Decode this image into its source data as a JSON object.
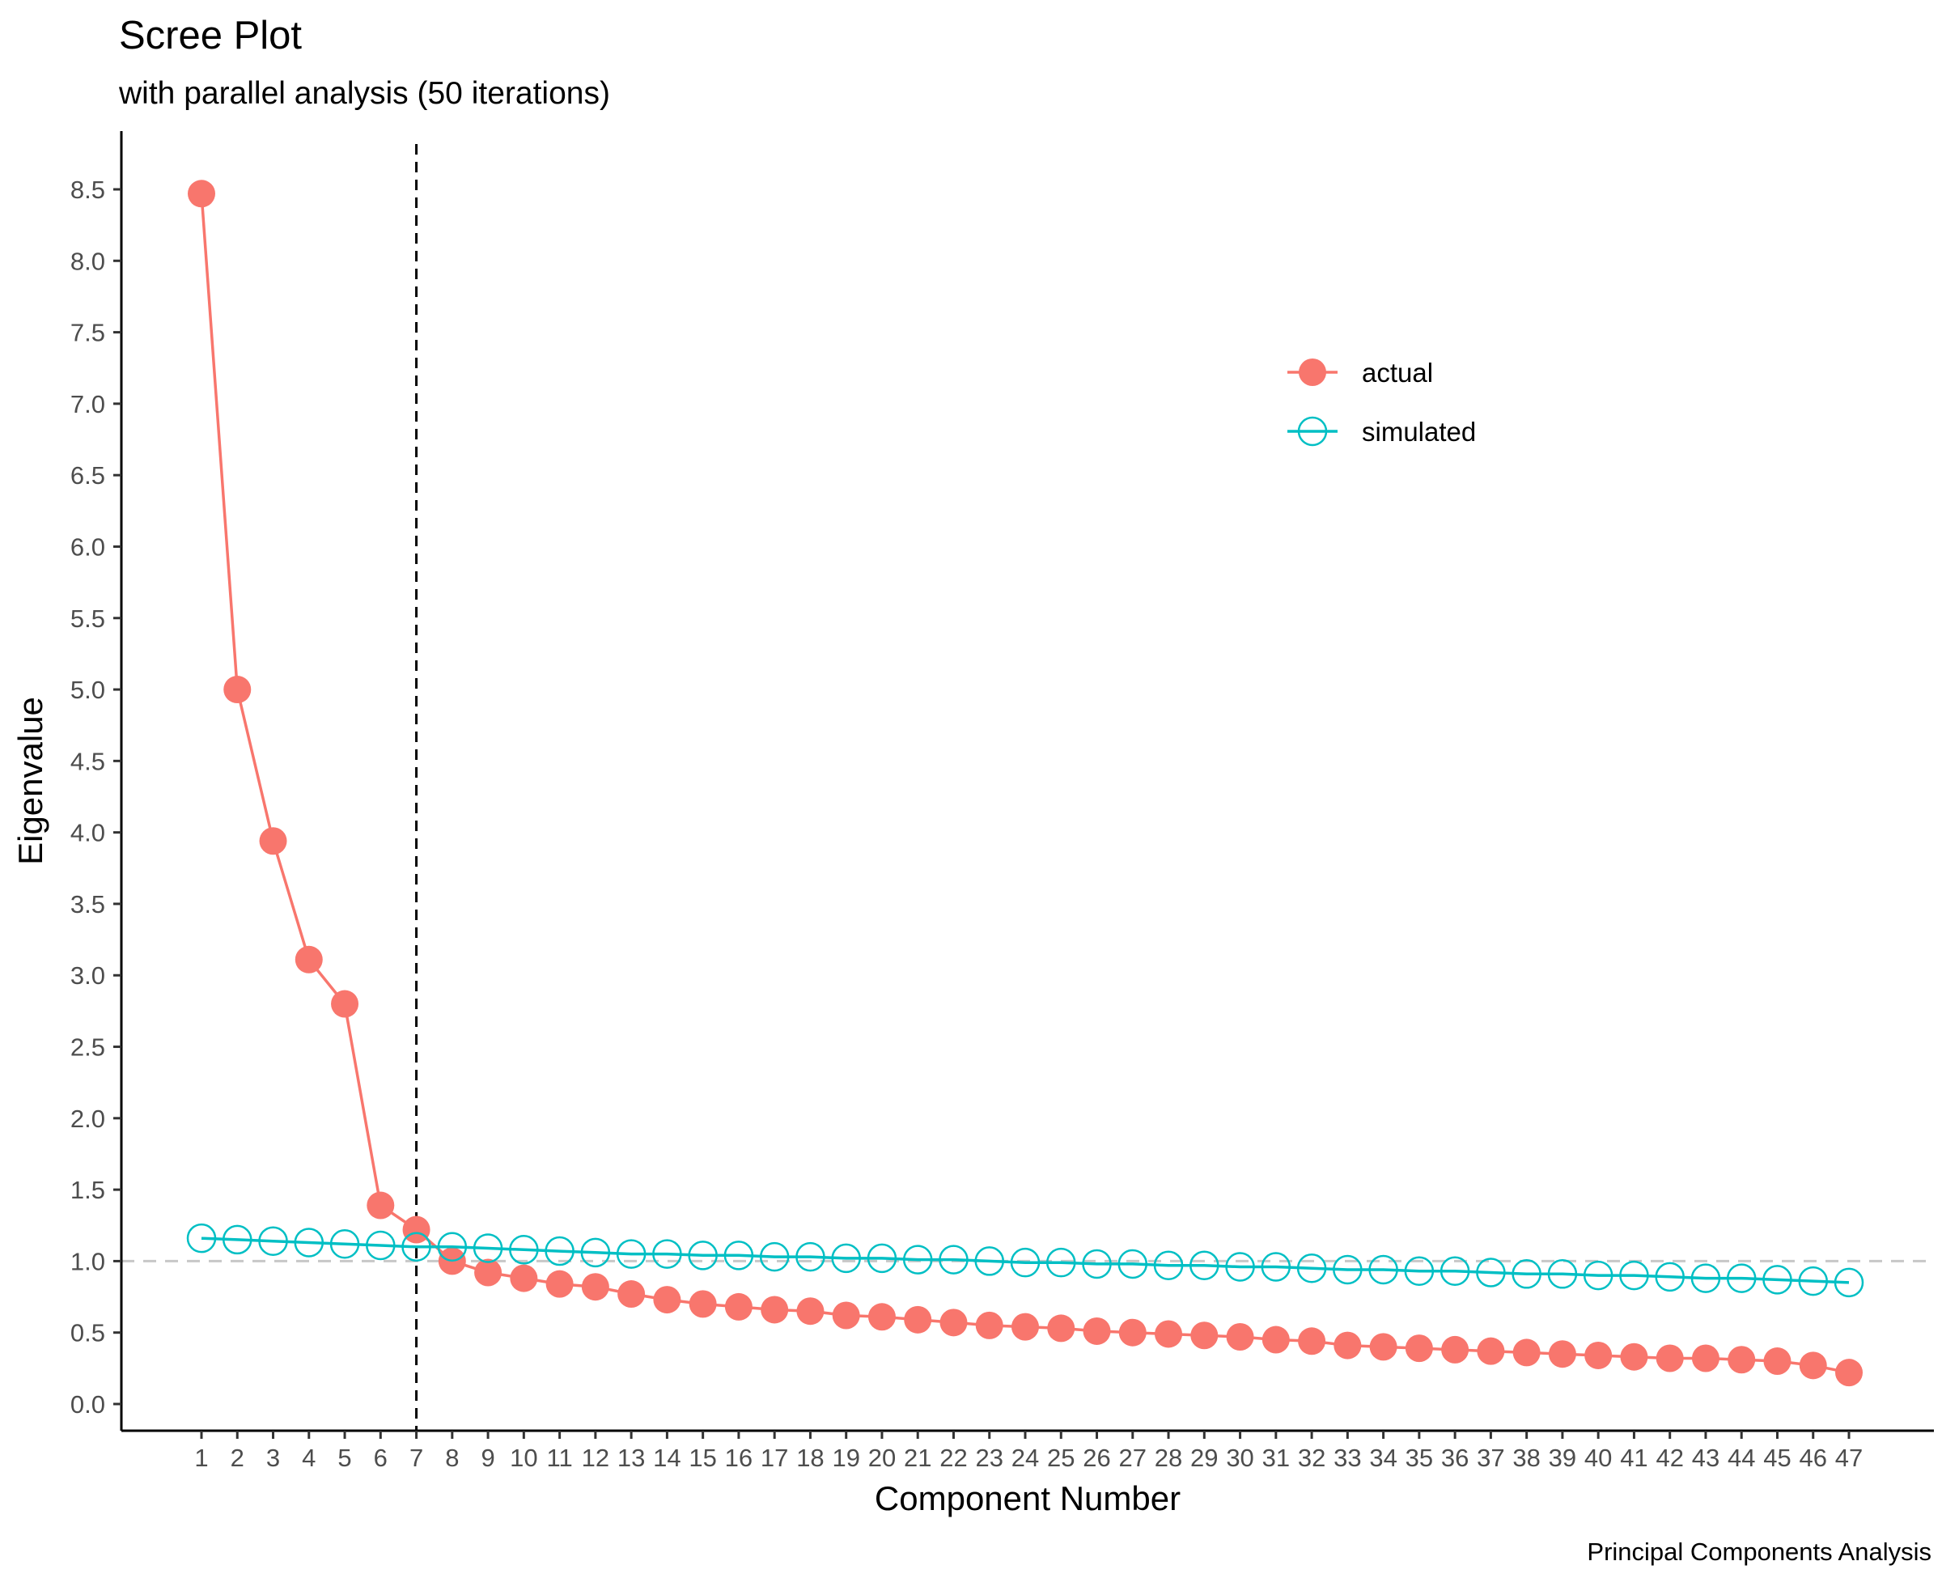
{
  "chart_data": {
    "type": "line",
    "title": "Scree Plot",
    "subtitle": "with parallel analysis (50 iterations)",
    "xlabel": "Component Number",
    "ylabel": "Eigenvalue",
    "caption": "Principal Components Analysis",
    "x": [
      1,
      2,
      3,
      4,
      5,
      6,
      7,
      8,
      9,
      10,
      11,
      12,
      13,
      14,
      15,
      16,
      17,
      18,
      19,
      20,
      21,
      22,
      23,
      24,
      25,
      26,
      27,
      28,
      29,
      30,
      31,
      32,
      33,
      34,
      35,
      36,
      37,
      38,
      39,
      40,
      41,
      42,
      43,
      44,
      45,
      46,
      47
    ],
    "xlim": [
      1,
      47
    ],
    "ylim": [
      0,
      8.5
    ],
    "yticks": [
      "0.0",
      "0.5",
      "1.0",
      "1.5",
      "2.0",
      "2.5",
      "3.0",
      "3.5",
      "4.0",
      "4.5",
      "5.0",
      "5.5",
      "6.0",
      "6.5",
      "7.0",
      "7.5",
      "8.0",
      "8.5"
    ],
    "reference_lines": {
      "vertical_x": 7,
      "horizontal_y": 1.0
    },
    "legend_position": "top-right",
    "grid": false,
    "series": [
      {
        "name": "actual",
        "color": "#F8766D",
        "marker": "filled-circle",
        "values": [
          8.47,
          5.0,
          3.94,
          3.11,
          2.8,
          1.39,
          1.22,
          1.0,
          0.92,
          0.88,
          0.84,
          0.82,
          0.77,
          0.73,
          0.7,
          0.68,
          0.66,
          0.65,
          0.62,
          0.61,
          0.59,
          0.57,
          0.55,
          0.54,
          0.53,
          0.51,
          0.5,
          0.49,
          0.48,
          0.47,
          0.45,
          0.44,
          0.41,
          0.4,
          0.39,
          0.38,
          0.37,
          0.36,
          0.35,
          0.34,
          0.33,
          0.32,
          0.32,
          0.31,
          0.3,
          0.27,
          0.22
        ]
      },
      {
        "name": "simulated",
        "color": "#00BFC4",
        "marker": "open-circle",
        "values": [
          1.16,
          1.15,
          1.14,
          1.13,
          1.12,
          1.11,
          1.1,
          1.1,
          1.09,
          1.08,
          1.07,
          1.06,
          1.05,
          1.05,
          1.04,
          1.04,
          1.03,
          1.03,
          1.02,
          1.02,
          1.01,
          1.01,
          1.0,
          0.99,
          0.99,
          0.98,
          0.98,
          0.97,
          0.97,
          0.96,
          0.96,
          0.95,
          0.94,
          0.94,
          0.93,
          0.93,
          0.92,
          0.91,
          0.91,
          0.9,
          0.9,
          0.89,
          0.88,
          0.88,
          0.87,
          0.86,
          0.85
        ]
      }
    ]
  }
}
